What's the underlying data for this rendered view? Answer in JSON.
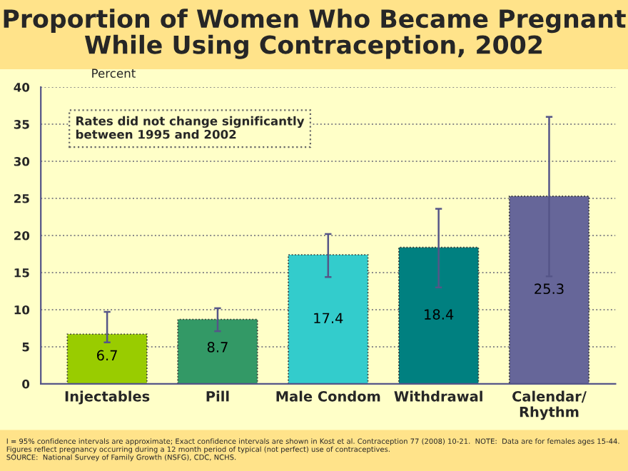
{
  "chart_data": {
    "type": "bar",
    "title": "Proportion of Women Who Became Pregnant\nWhile Using Contraception, 2002",
    "ylabel": "Percent",
    "categories": [
      "Injectables",
      "Pill",
      "Male Condom",
      "Withdrawal",
      "Calendar/\nRhythm"
    ],
    "values": [
      6.7,
      8.7,
      17.4,
      18.4,
      25.3
    ],
    "colors": [
      "#99cc00",
      "#339966",
      "#33cccc",
      "#008080",
      "#666699"
    ],
    "errors": [
      [
        5.6,
        9.7
      ],
      [
        7.1,
        10.2
      ],
      [
        14.4,
        20.2
      ],
      [
        13.0,
        23.6
      ],
      [
        14.5,
        36.0
      ]
    ],
    "data_labels": true,
    "ylim": [
      0,
      40
    ],
    "yticks": [
      0,
      5,
      10,
      15,
      20,
      25,
      30,
      35,
      40
    ],
    "grid": "y",
    "annotations": [
      "Rates did not change significantly\nbetween 1995 and 2002",
      "I = 95% confidence intervals are approximate; Exact confidence intervals are shown in Kost et al. Contraception 77 (2008) 10-21.  NOTE:  Data are for females ages 15-44. Figures reflect pregnancy occurring during a 12 month period of typical (not perfect) use of contraceptives.\nSOURCE:  National Survey of Family Growth (NSFG), CDC, NCHS."
    ]
  }
}
